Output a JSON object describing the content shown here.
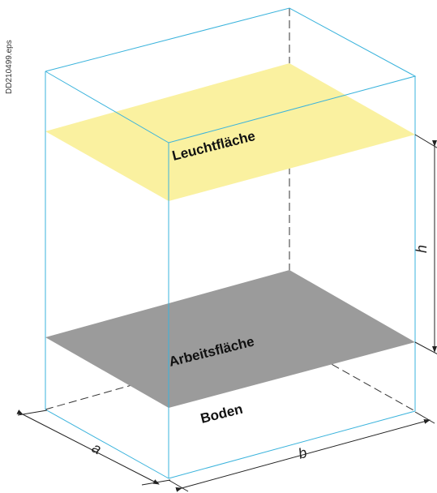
{
  "labels": {
    "file_ref": "DD210499.eps",
    "luminous_surface": "Leuchtfläche",
    "work_surface": "Arbeitsfläche",
    "floor": "Boden",
    "dim_a": "a",
    "dim_b": "b",
    "dim_h": "h"
  },
  "colors": {
    "luminous_surface": "#faf1a0",
    "work_surface": "#9b9b9b",
    "edges": "#3ab3dc"
  }
}
